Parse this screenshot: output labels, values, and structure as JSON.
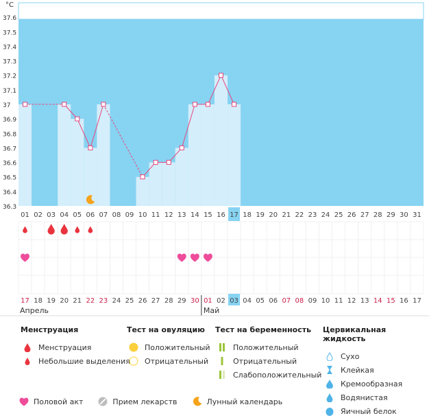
{
  "chart_data": {
    "type": "line",
    "unit": "°C",
    "ylim": [
      36.3,
      37.7
    ],
    "y_ticks": [
      "36.3",
      "36.4",
      "36.5",
      "36.6",
      "36.7",
      "36.8",
      "36.9",
      "37",
      "37.1",
      "37.2",
      "37.3",
      "37.4",
      "37.5",
      "37.6"
    ],
    "x_top": [
      "01",
      "02",
      "03",
      "04",
      "05",
      "06",
      "07",
      "08",
      "09",
      "10",
      "11",
      "12",
      "13",
      "14",
      "15",
      "16",
      "17",
      "18",
      "19",
      "20",
      "21",
      "22",
      "23",
      "24",
      "25",
      "26",
      "27",
      "28",
      "29",
      "30",
      "31"
    ],
    "x_bottom": [
      "17",
      "18",
      "19",
      "20",
      "21",
      "22",
      "23",
      "24",
      "25",
      "26",
      "27",
      "28",
      "29",
      "30",
      "01",
      "02",
      "03",
      "04",
      "05",
      "06",
      "07",
      "08",
      "09",
      "10",
      "11",
      "12",
      "13",
      "14",
      "15",
      "16",
      "17"
    ],
    "x_bottom_red": [
      0,
      5,
      6,
      13,
      14,
      20,
      21,
      27,
      28
    ],
    "highlight_index": 16,
    "month_labels": [
      {
        "text": "Апрель",
        "at": 0
      },
      {
        "text": "Май",
        "at": 14
      }
    ],
    "temperatures": [
      37.0,
      null,
      null,
      37.0,
      36.9,
      36.7,
      37.0,
      null,
      null,
      36.5,
      36.6,
      36.6,
      36.7,
      37.0,
      37.0,
      37.2,
      37.0,
      null,
      null,
      null,
      null,
      null,
      null,
      null,
      null,
      null,
      null,
      null,
      null,
      null,
      null
    ],
    "dashed_segments": [
      [
        0,
        3
      ],
      [
        6,
        9
      ]
    ],
    "menstruation_big": [
      2,
      3
    ],
    "menstruation_small": [
      0,
      4,
      5
    ],
    "intercourse": [
      0,
      12,
      13,
      14
    ],
    "moon": [
      5
    ],
    "colors": {
      "sky": "#87d3f2",
      "bar": "#d4eefb",
      "line": "#e8467c",
      "drop": "#e9343f",
      "heart": "#ee4d9b",
      "moon": "#f5a31a",
      "red_text": "#cc1e4a"
    }
  },
  "legend": {
    "col1": {
      "title": "Менструация",
      "items": [
        "Менструация",
        "Небольшие выделения"
      ]
    },
    "col2": {
      "title": "Тест на овуляцию",
      "items": [
        "Положительный",
        "Отрицательный"
      ]
    },
    "col3": {
      "title": "Тест на беременность",
      "items": [
        "Положительный",
        "Отрицательный",
        "Слабоположительный"
      ]
    },
    "col4": {
      "title": "Цервикальная жидкость",
      "items": [
        "Сухо",
        "Клейкая",
        "Кремообразная",
        "Водянистая",
        "Яичный белок"
      ]
    },
    "bottom": [
      "Половой акт",
      "Прием лекарств",
      "Лунный календарь"
    ]
  }
}
